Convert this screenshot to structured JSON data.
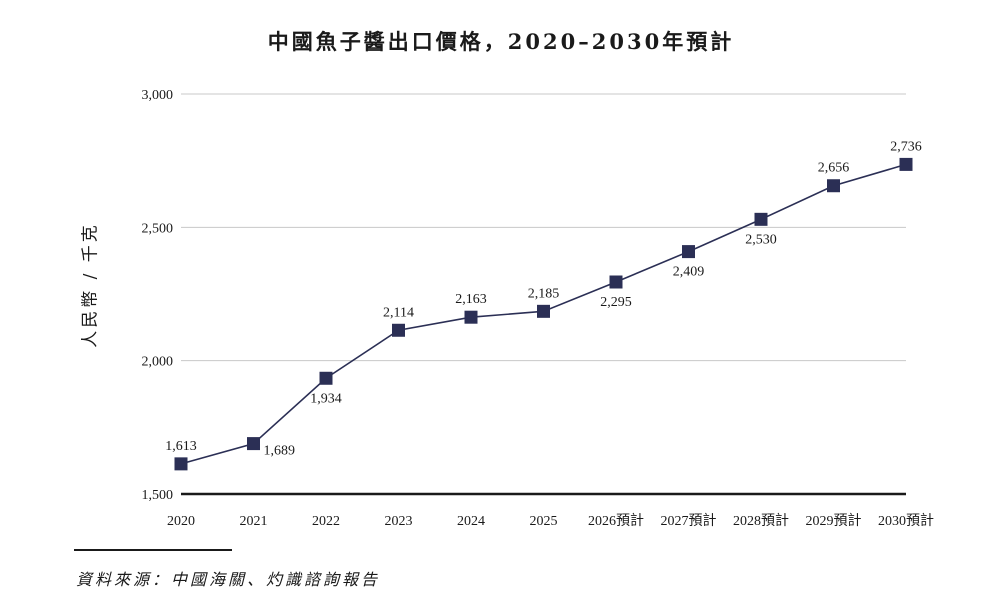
{
  "chart_data": {
    "type": "line",
    "title": "中國魚子醬出口價格，2020–2030年預計",
    "ylabel": "人民幣 / 千克",
    "xlabel": "",
    "categories": [
      "2020",
      "2021",
      "2022",
      "2023",
      "2024",
      "2025",
      "2026預計",
      "2027預計",
      "2028預計",
      "2029預計",
      "2030預計"
    ],
    "series": [
      {
        "values": [
          1613,
          1689,
          1934,
          2114,
          2163,
          2185,
          2295,
          2409,
          2530,
          2656,
          2736
        ]
      }
    ],
    "data_labels": [
      "1,613",
      "1,689",
      "1,934",
      "2,114",
      "2,163",
      "2,185",
      "2,295",
      "2,409",
      "2,530",
      "2,656",
      "2,736"
    ],
    "label_positions": [
      "above",
      "below",
      "below",
      "above",
      "above",
      "above",
      "below",
      "below",
      "below",
      "above",
      "above"
    ],
    "ylim": [
      1500,
      3000
    ],
    "yticks": [
      1500,
      2000,
      2500,
      3000
    ],
    "ytick_labels": [
      "1,500",
      "2,000",
      "2,500",
      "3,000"
    ],
    "grid": true,
    "marker": "square",
    "line_color": "#2b2f55"
  },
  "source": "資料來源：中國海關、灼識諮詢報告"
}
